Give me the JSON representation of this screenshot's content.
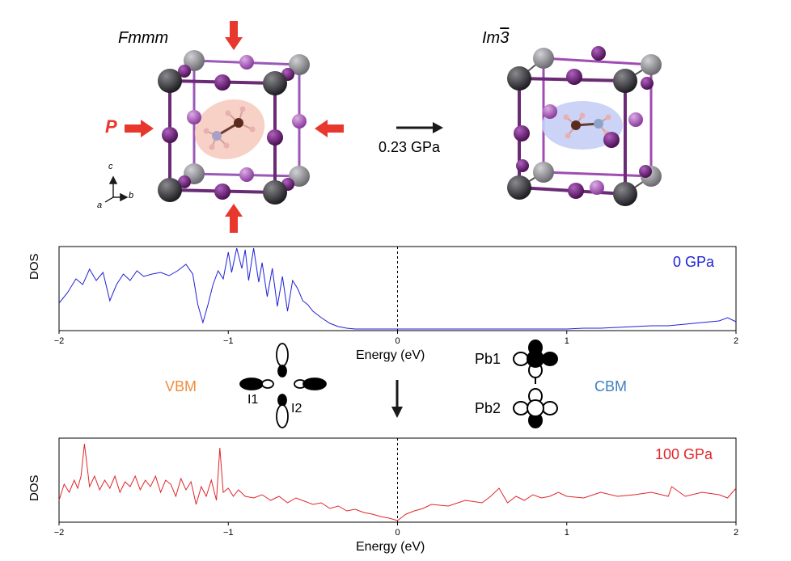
{
  "structures": {
    "left": {
      "phase": "Fmmm",
      "pressure_label": "P",
      "axes": {
        "c": "c",
        "a": "a",
        "b": "b"
      }
    },
    "right": {
      "phase_main": "Im",
      "phase_bar": "3"
    },
    "transition_label": "0.23 GPa"
  },
  "orbitals": {
    "vbm_label": "VBM",
    "cbm_label": "CBM",
    "iodine_1": "I1",
    "iodine_2": "I2",
    "lead_1": "Pb1",
    "lead_2": "Pb2"
  },
  "colors": {
    "arrow_red": "#e8382e",
    "dos_0gpa": "#1f22d6",
    "dos_100gpa": "#e0262a",
    "vbm": "#f08c3a",
    "cbm": "#3f7fc0",
    "pb_dark": "#3a3a3d",
    "pb_light": "#8e8e92",
    "iodine_dark": "#6a1a72",
    "iodine_light": "#a04cb2",
    "molecule_highlight_left": "#f6c9bc",
    "molecule_highlight_right": "#c5cef6"
  },
  "chart_data": [
    {
      "type": "line",
      "label": "0 GPa",
      "xlabel": "Energy (eV)",
      "ylabel": "DOS",
      "xlim": [
        -2,
        2
      ],
      "ylim": [
        0,
        1
      ],
      "xticks": [
        "−2",
        "−1",
        "0",
        "1",
        "2"
      ],
      "reference_line_x": 0,
      "x": [
        -2.0,
        -1.95,
        -1.9,
        -1.86,
        -1.82,
        -1.78,
        -1.74,
        -1.7,
        -1.66,
        -1.62,
        -1.58,
        -1.54,
        -1.5,
        -1.45,
        -1.4,
        -1.35,
        -1.3,
        -1.25,
        -1.21,
        -1.18,
        -1.15,
        -1.12,
        -1.09,
        -1.06,
        -1.03,
        -1.0,
        -0.98,
        -0.95,
        -0.92,
        -0.9,
        -0.88,
        -0.85,
        -0.82,
        -0.8,
        -0.77,
        -0.74,
        -0.71,
        -0.68,
        -0.65,
        -0.62,
        -0.59,
        -0.56,
        -0.53,
        -0.5,
        -0.45,
        -0.4,
        -0.35,
        -0.3,
        -0.25,
        -0.2,
        -0.15,
        -0.1,
        -0.05,
        0.0,
        0.2,
        0.4,
        0.6,
        0.8,
        1.0,
        1.1,
        1.2,
        1.3,
        1.4,
        1.5,
        1.6,
        1.7,
        1.8,
        1.9,
        1.95,
        2.0
      ],
      "y": [
        0.32,
        0.45,
        0.62,
        0.55,
        0.74,
        0.6,
        0.7,
        0.35,
        0.55,
        0.68,
        0.6,
        0.72,
        0.65,
        0.68,
        0.7,
        0.66,
        0.72,
        0.8,
        0.68,
        0.3,
        0.08,
        0.3,
        0.55,
        0.72,
        0.62,
        0.95,
        0.7,
        1.0,
        0.75,
        0.98,
        0.6,
        1.0,
        0.58,
        0.82,
        0.4,
        0.75,
        0.28,
        0.65,
        0.22,
        0.6,
        0.5,
        0.35,
        0.3,
        0.22,
        0.14,
        0.07,
        0.03,
        0.01,
        0.0,
        0.0,
        0.0,
        0.0,
        0.0,
        0.0,
        0.0,
        0.0,
        0.0,
        0.0,
        0.0,
        0.01,
        0.01,
        0.02,
        0.03,
        0.04,
        0.04,
        0.06,
        0.08,
        0.1,
        0.14,
        0.09
      ]
    },
    {
      "type": "line",
      "label": "100 GPa",
      "xlabel": "Energy (eV)",
      "ylabel": "DOS",
      "xlim": [
        -2,
        2
      ],
      "ylim": [
        0,
        1
      ],
      "xticks": [
        "−2",
        "−1",
        "0",
        "1",
        "2"
      ],
      "reference_line_x": 0,
      "x": [
        -2.0,
        -1.97,
        -1.94,
        -1.91,
        -1.89,
        -1.87,
        -1.85,
        -1.82,
        -1.79,
        -1.76,
        -1.73,
        -1.7,
        -1.67,
        -1.64,
        -1.61,
        -1.58,
        -1.55,
        -1.52,
        -1.49,
        -1.46,
        -1.43,
        -1.4,
        -1.37,
        -1.34,
        -1.31,
        -1.28,
        -1.25,
        -1.22,
        -1.19,
        -1.16,
        -1.13,
        -1.1,
        -1.07,
        -1.05,
        -1.03,
        -1.0,
        -0.97,
        -0.94,
        -0.9,
        -0.85,
        -0.8,
        -0.75,
        -0.7,
        -0.65,
        -0.6,
        -0.55,
        -0.5,
        -0.45,
        -0.4,
        -0.35,
        -0.3,
        -0.25,
        -0.2,
        -0.15,
        -0.1,
        -0.05,
        0.0,
        0.05,
        0.1,
        0.15,
        0.2,
        0.3,
        0.4,
        0.5,
        0.55,
        0.6,
        0.65,
        0.7,
        0.75,
        0.8,
        0.85,
        0.9,
        0.95,
        1.0,
        1.1,
        1.2,
        1.3,
        1.4,
        1.5,
        1.6,
        1.62,
        1.7,
        1.8,
        1.9,
        1.95,
        2.0
      ],
      "y": [
        0.25,
        0.45,
        0.35,
        0.5,
        0.4,
        0.55,
        0.95,
        0.42,
        0.55,
        0.38,
        0.5,
        0.4,
        0.55,
        0.35,
        0.48,
        0.42,
        0.55,
        0.38,
        0.5,
        0.42,
        0.55,
        0.35,
        0.5,
        0.45,
        0.3,
        0.52,
        0.38,
        0.48,
        0.2,
        0.42,
        0.3,
        0.5,
        0.25,
        0.9,
        0.35,
        0.4,
        0.3,
        0.38,
        0.3,
        0.28,
        0.32,
        0.25,
        0.3,
        0.22,
        0.28,
        0.24,
        0.2,
        0.22,
        0.15,
        0.18,
        0.12,
        0.14,
        0.1,
        0.08,
        0.05,
        0.03,
        0.0,
        0.08,
        0.12,
        0.15,
        0.2,
        0.18,
        0.25,
        0.22,
        0.3,
        0.4,
        0.22,
        0.3,
        0.25,
        0.32,
        0.28,
        0.3,
        0.35,
        0.3,
        0.28,
        0.35,
        0.3,
        0.32,
        0.35,
        0.3,
        0.42,
        0.3,
        0.35,
        0.32,
        0.28,
        0.4
      ]
    }
  ]
}
